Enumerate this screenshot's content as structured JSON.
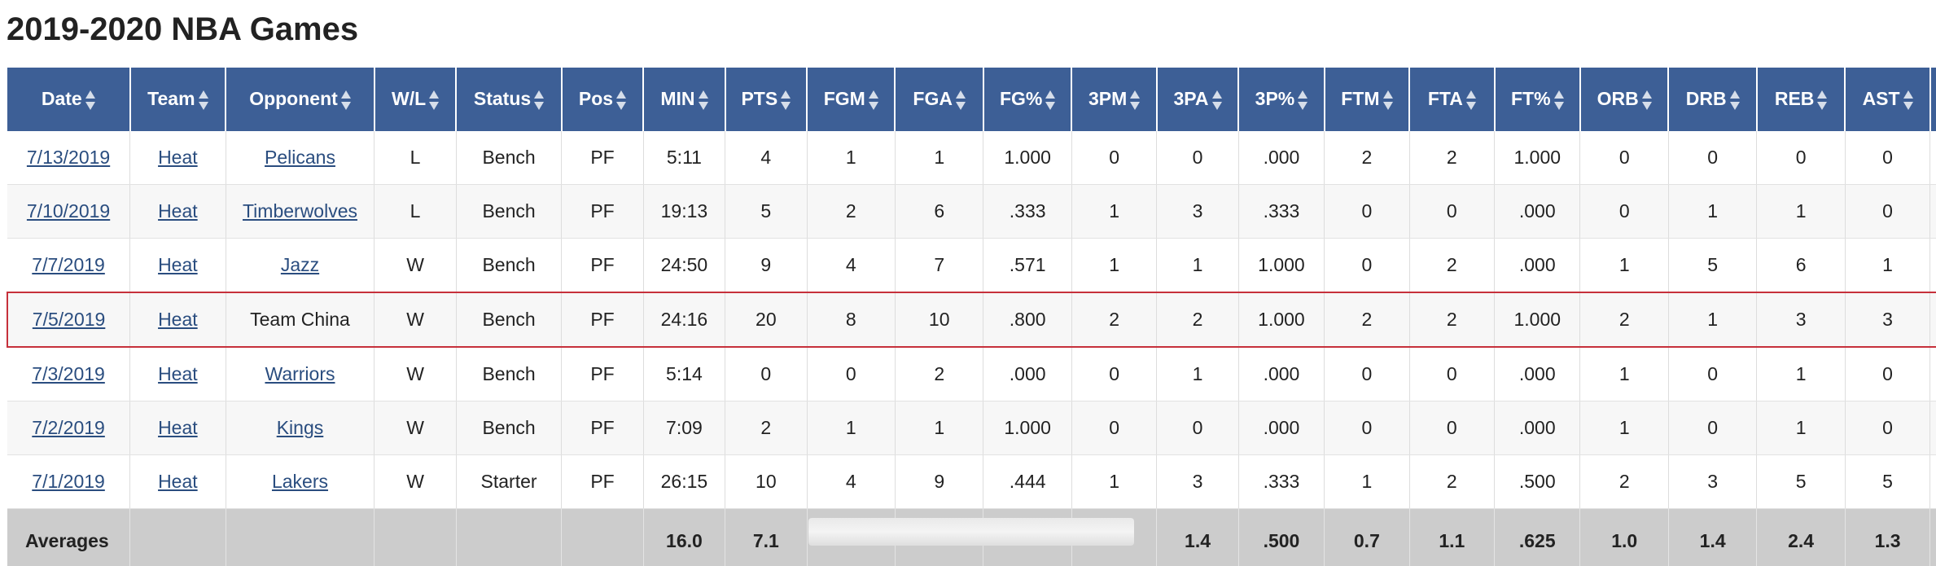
{
  "page": {
    "title": "2019-2020 NBA Games"
  },
  "table": {
    "columns": [
      "Date",
      "Team",
      "Opponent",
      "W/L",
      "Status",
      "Pos",
      "MIN",
      "PTS",
      "FGM",
      "FGA",
      "FG%",
      "3PM",
      "3PA",
      "3P%",
      "FTM",
      "FTA",
      "FT%",
      "ORB",
      "DRB",
      "REB",
      "AST"
    ],
    "rows": [
      [
        "7/13/2019",
        "Heat",
        "Pelicans",
        "L",
        "Bench",
        "PF",
        "5:11",
        "4",
        "1",
        "1",
        "1.000",
        "0",
        "0",
        ".000",
        "2",
        "2",
        "1.000",
        "0",
        "0",
        "0",
        "0"
      ],
      [
        "7/10/2019",
        "Heat",
        "Timberwolves",
        "L",
        "Bench",
        "PF",
        "19:13",
        "5",
        "2",
        "6",
        ".333",
        "1",
        "3",
        ".333",
        "0",
        "0",
        ".000",
        "0",
        "1",
        "1",
        "0"
      ],
      [
        "7/7/2019",
        "Heat",
        "Jazz",
        "W",
        "Bench",
        "PF",
        "24:50",
        "9",
        "4",
        "7",
        ".571",
        "1",
        "1",
        "1.000",
        "0",
        "2",
        ".000",
        "1",
        "5",
        "6",
        "1"
      ],
      [
        "7/5/2019",
        "Heat",
        "Team China",
        "W",
        "Bench",
        "PF",
        "24:16",
        "20",
        "8",
        "10",
        ".800",
        "2",
        "2",
        "1.000",
        "2",
        "2",
        "1.000",
        "2",
        "1",
        "3",
        "3"
      ],
      [
        "7/3/2019",
        "Heat",
        "Warriors",
        "W",
        "Bench",
        "PF",
        "5:14",
        "0",
        "0",
        "2",
        ".000",
        "0",
        "1",
        ".000",
        "0",
        "0",
        ".000",
        "1",
        "0",
        "1",
        "0"
      ],
      [
        "7/2/2019",
        "Heat",
        "Kings",
        "W",
        "Bench",
        "PF",
        "7:09",
        "2",
        "1",
        "1",
        "1.000",
        "0",
        "0",
        ".000",
        "0",
        "0",
        ".000",
        "1",
        "0",
        "1",
        "0"
      ],
      [
        "7/1/2019",
        "Heat",
        "Lakers",
        "W",
        "Starter",
        "PF",
        "26:15",
        "10",
        "4",
        "9",
        ".444",
        "1",
        "3",
        ".333",
        "1",
        "2",
        ".500",
        "2",
        "3",
        "5",
        "5"
      ]
    ],
    "opponent_linked": [
      true,
      true,
      true,
      false,
      true,
      true,
      true
    ],
    "highlighted_row_index": 3,
    "averages": {
      "label": "Averages",
      "values": [
        "",
        "",
        "",
        "",
        "",
        "16.0",
        "7.1",
        "",
        "",
        "",
        "",
        "1.4",
        ".500",
        "0.7",
        "1.1",
        ".625",
        "1.0",
        "1.4",
        "2.4",
        "1.3"
      ]
    }
  },
  "colors": {
    "header_bg": "#3d5f96",
    "header_text": "#ffffff",
    "link": "#2a4d7f",
    "highlight_border": "#c6303b",
    "footer_bg": "#cccccc"
  },
  "icons": {
    "sort": "sort-arrows-icon"
  }
}
